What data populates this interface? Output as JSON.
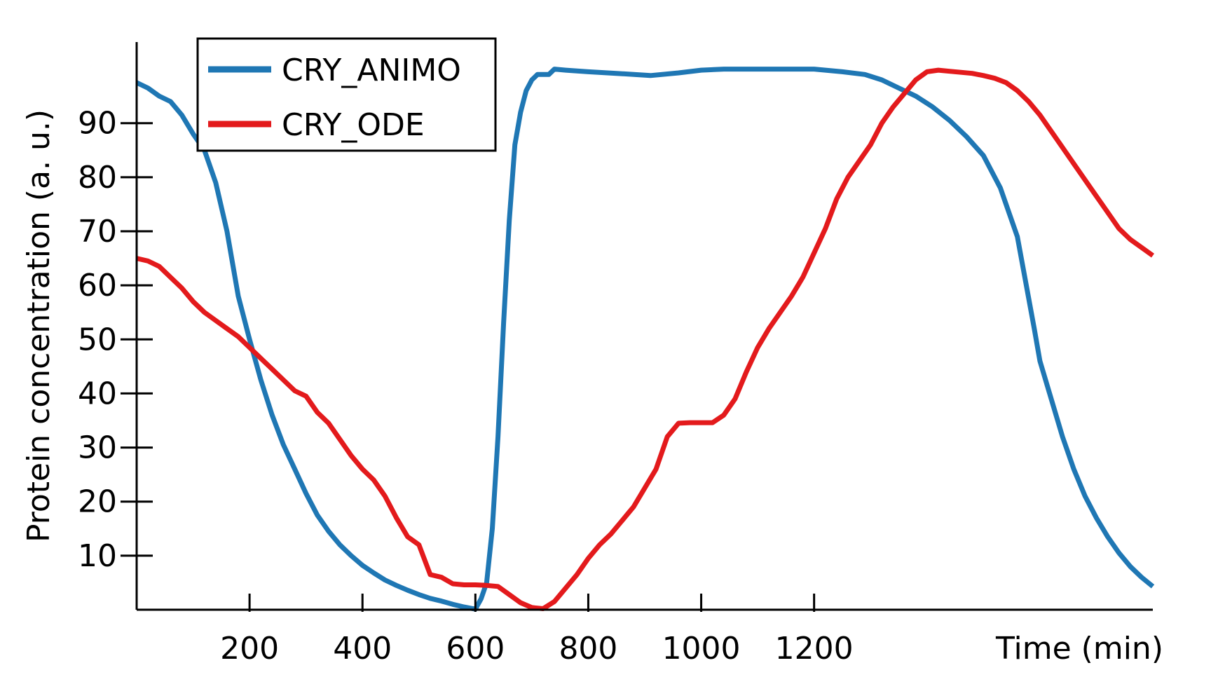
{
  "chart_data": {
    "type": "line",
    "title": "",
    "xlabel": "Time (min)",
    "ylabel": "Protein concentration (a. u.)",
    "xlim": [
      0,
      1800
    ],
    "ylim": [
      0,
      105
    ],
    "xticks": [
      200,
      400,
      600,
      800,
      1000,
      1200
    ],
    "yticks": [
      10,
      20,
      30,
      40,
      50,
      60,
      70,
      80,
      90
    ],
    "grid": false,
    "legend": "top-left",
    "series": [
      {
        "name": "CRY_ANIMO",
        "color": "#1f77b4",
        "x": [
          0,
          20,
          40,
          60,
          80,
          100,
          120,
          140,
          160,
          180,
          200,
          220,
          240,
          260,
          280,
          300,
          320,
          340,
          360,
          380,
          400,
          420,
          440,
          460,
          480,
          500,
          520,
          540,
          560,
          580,
          600,
          610,
          620,
          630,
          640,
          650,
          660,
          670,
          680,
          690,
          700,
          710,
          720,
          730,
          740,
          760,
          800,
          850,
          910,
          960,
          1000,
          1040,
          1090,
          1150,
          1200,
          1250,
          1290,
          1320,
          1350,
          1380,
          1410,
          1440,
          1470,
          1500,
          1530,
          1560,
          1590,
          1600,
          1620,
          1640,
          1660,
          1680,
          1700,
          1720,
          1740,
          1760,
          1780,
          1800
        ],
        "y": [
          97.5,
          96.5,
          95,
          94,
          91.5,
          88,
          85,
          79,
          70,
          58,
          50,
          42.5,
          36,
          30.5,
          26,
          21.5,
          17.5,
          14.5,
          12,
          10,
          8.2,
          6.8,
          5.5,
          4.5,
          3.6,
          2.8,
          2.1,
          1.6,
          1,
          0.5,
          0.1,
          2,
          5,
          15,
          32,
          53,
          72,
          86,
          92,
          96,
          98,
          99,
          99,
          99,
          100,
          99.8,
          99.5,
          99.2,
          98.8,
          99.3,
          99.8,
          100,
          100,
          100,
          100,
          99.5,
          99,
          98,
          96.5,
          95,
          93,
          90.5,
          87.5,
          84,
          78,
          69,
          52,
          46,
          39,
          32,
          26,
          21,
          17,
          13.5,
          10.5,
          8,
          6,
          4.3
        ]
      },
      {
        "name": "CRY_ODE",
        "color": "#e31a1c",
        "x": [
          0,
          20,
          40,
          60,
          80,
          100,
          120,
          140,
          160,
          180,
          200,
          220,
          240,
          260,
          280,
          300,
          320,
          340,
          360,
          380,
          400,
          420,
          440,
          460,
          480,
          500,
          520,
          540,
          560,
          580,
          600,
          620,
          640,
          660,
          680,
          700,
          720,
          740,
          760,
          780,
          800,
          820,
          840,
          860,
          880,
          900,
          920,
          940,
          960,
          980,
          1000,
          1020,
          1040,
          1060,
          1080,
          1100,
          1120,
          1140,
          1160,
          1180,
          1200,
          1220,
          1240,
          1260,
          1280,
          1300,
          1320,
          1340,
          1360,
          1380,
          1400,
          1420,
          1440,
          1460,
          1480,
          1500,
          1520,
          1540,
          1560,
          1580,
          1600,
          1620,
          1640,
          1660,
          1680,
          1700,
          1720,
          1740,
          1760,
          1780,
          1800
        ],
        "y": [
          65,
          64.5,
          63.5,
          61.5,
          59.5,
          57,
          55,
          53.5,
          52,
          50.5,
          48.5,
          46.5,
          44.5,
          42.5,
          40.5,
          39.5,
          36.5,
          34.5,
          31.5,
          28.5,
          26,
          24,
          21,
          17,
          13.5,
          12,
          6.5,
          6,
          4.8,
          4.6,
          4.6,
          4.5,
          4.3,
          2.8,
          1.3,
          0.4,
          0.2,
          1.5,
          4,
          6.5,
          9.5,
          12,
          14,
          16.5,
          19,
          22.5,
          26,
          32,
          34.5,
          34.6,
          34.6,
          34.6,
          36,
          39,
          44,
          48.5,
          52,
          55,
          58,
          61.5,
          66,
          70.5,
          76,
          80,
          83,
          86,
          90,
          93,
          95.5,
          98,
          99.5,
          99.8,
          99.6,
          99.4,
          99.2,
          98.8,
          98.3,
          97.5,
          96,
          94,
          91.5,
          88.5,
          85.5,
          82.5,
          79.5,
          76.5,
          73.5,
          70.5,
          68.5,
          67,
          65.5
        ]
      }
    ]
  }
}
